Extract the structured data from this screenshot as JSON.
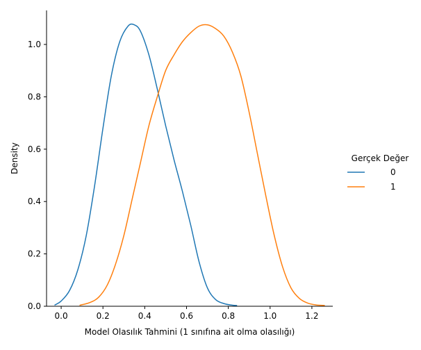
{
  "chart_data": {
    "type": "line",
    "title": "",
    "xlabel": "Model Olasılık Tahmini (1 sınıfına ait olma olasılığı)",
    "ylabel": "Density",
    "xlim": [
      -0.07,
      1.3
    ],
    "ylim": [
      0.0,
      1.13
    ],
    "x_ticks": [
      0.0,
      0.2,
      0.4,
      0.6,
      0.8,
      1.0,
      1.2
    ],
    "x_tick_labels": [
      "0.0",
      "0.2",
      "0.4",
      "0.6",
      "0.8",
      "1.0",
      "1.2"
    ],
    "y_ticks": [
      0.0,
      0.2,
      0.4,
      0.6,
      0.8,
      1.0
    ],
    "y_tick_labels": [
      "0.0",
      "0.2",
      "0.4",
      "0.6",
      "0.8",
      "1.0"
    ],
    "grid": false,
    "legend": {
      "title": "Gerçek Değer",
      "placement": "right"
    },
    "series": [
      {
        "name": "0",
        "color": "#1f77b4",
        "x": [
          -0.03,
          0.0,
          0.04,
          0.08,
          0.12,
          0.16,
          0.2,
          0.24,
          0.28,
          0.32,
          0.35,
          0.38,
          0.42,
          0.46,
          0.5,
          0.54,
          0.58,
          0.62,
          0.66,
          0.7,
          0.74,
          0.78,
          0.82,
          0.84
        ],
        "y": [
          0.005,
          0.02,
          0.06,
          0.14,
          0.27,
          0.46,
          0.68,
          0.88,
          1.01,
          1.07,
          1.075,
          1.05,
          0.96,
          0.83,
          0.69,
          0.56,
          0.44,
          0.31,
          0.17,
          0.07,
          0.025,
          0.01,
          0.004,
          0.003
        ]
      },
      {
        "name": "1",
        "color": "#ff7f0e",
        "x": [
          0.09,
          0.14,
          0.18,
          0.22,
          0.26,
          0.3,
          0.34,
          0.38,
          0.42,
          0.46,
          0.5,
          0.54,
          0.58,
          0.62,
          0.66,
          0.7,
          0.74,
          0.78,
          0.82,
          0.86,
          0.9,
          0.94,
          0.98,
          1.02,
          1.06,
          1.1,
          1.14,
          1.18,
          1.22,
          1.26
        ],
        "y": [
          0.004,
          0.015,
          0.035,
          0.08,
          0.16,
          0.27,
          0.41,
          0.55,
          0.69,
          0.8,
          0.9,
          0.96,
          1.01,
          1.045,
          1.07,
          1.075,
          1.06,
          1.03,
          0.97,
          0.88,
          0.74,
          0.58,
          0.42,
          0.27,
          0.15,
          0.07,
          0.03,
          0.012,
          0.005,
          0.003
        ]
      }
    ]
  }
}
